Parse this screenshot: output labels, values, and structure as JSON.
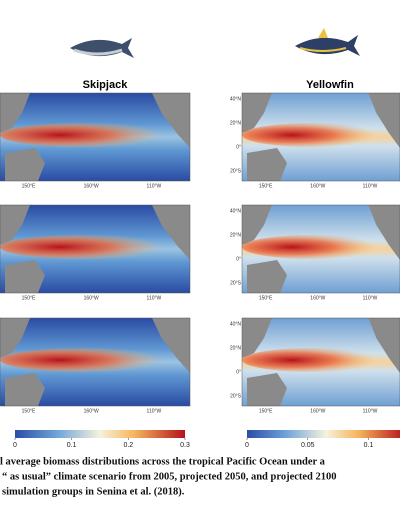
{
  "figure": {
    "panels": [
      {
        "title": "Skipjack",
        "colorbar": {
          "lim": [
            0,
            0.3
          ],
          "ticks": [
            0,
            0.1,
            0.2,
            0.3
          ]
        }
      },
      {
        "title": "Yellowfin",
        "colorbar": {
          "lim": [
            0,
            0.13
          ],
          "ticks": [
            0,
            0.05,
            0.1
          ]
        }
      }
    ],
    "lon_labels": [
      "150°E",
      "160°W",
      "110°W"
    ],
    "lat_labels": [
      "40°N",
      "20°N",
      "0°",
      "20°S"
    ],
    "caption": [
      "l average biomass  distributions  across the tropical  Pacific  Ocean under  a",
      "“ as usual” climate scenario from 2005, projected 2050, and projected 2100",
      "simulation  groups  in Senina et al. (2018)."
    ]
  }
}
